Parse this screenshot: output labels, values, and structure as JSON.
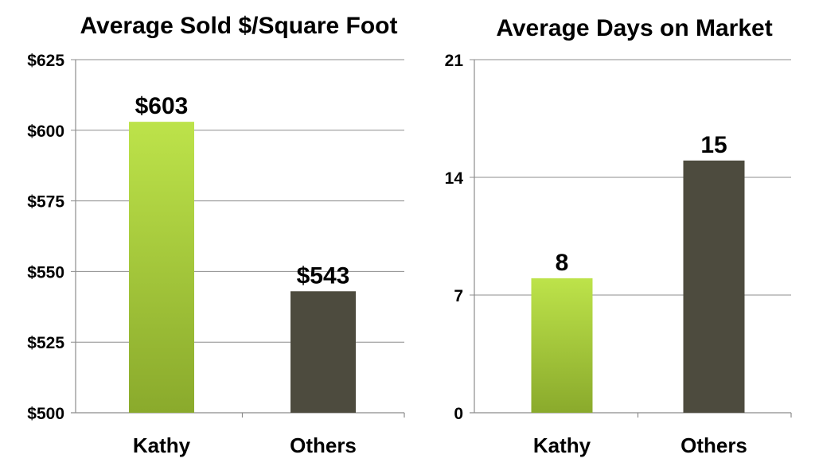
{
  "chart_data": [
    {
      "type": "bar",
      "title": "Average Sold $/Square Foot",
      "categories": [
        "Kathy",
        "Others"
      ],
      "values": [
        603,
        543
      ],
      "data_labels": [
        "$603",
        "$543"
      ],
      "ylim": [
        500,
        625
      ],
      "yticks": [
        500,
        525,
        550,
        575,
        600,
        625
      ],
      "ytick_labels": [
        "$500",
        "$525",
        "$550",
        "$575",
        "$600",
        "$625"
      ],
      "xlabel": "",
      "ylabel": "",
      "grid": true,
      "legend": "none",
      "colors": [
        "#9cc23a",
        "#4d4b3e"
      ]
    },
    {
      "type": "bar",
      "title": "Average Days on Market",
      "categories": [
        "Kathy",
        "Others"
      ],
      "values": [
        8,
        15
      ],
      "data_labels": [
        "8",
        "15"
      ],
      "ylim": [
        0,
        21
      ],
      "yticks": [
        0,
        7,
        14,
        21
      ],
      "ytick_labels": [
        "0",
        "7",
        "14",
        "21"
      ],
      "xlabel": "",
      "ylabel": "",
      "grid": true,
      "legend": "none",
      "colors": [
        "#9cc23a",
        "#4d4b3e"
      ]
    }
  ]
}
